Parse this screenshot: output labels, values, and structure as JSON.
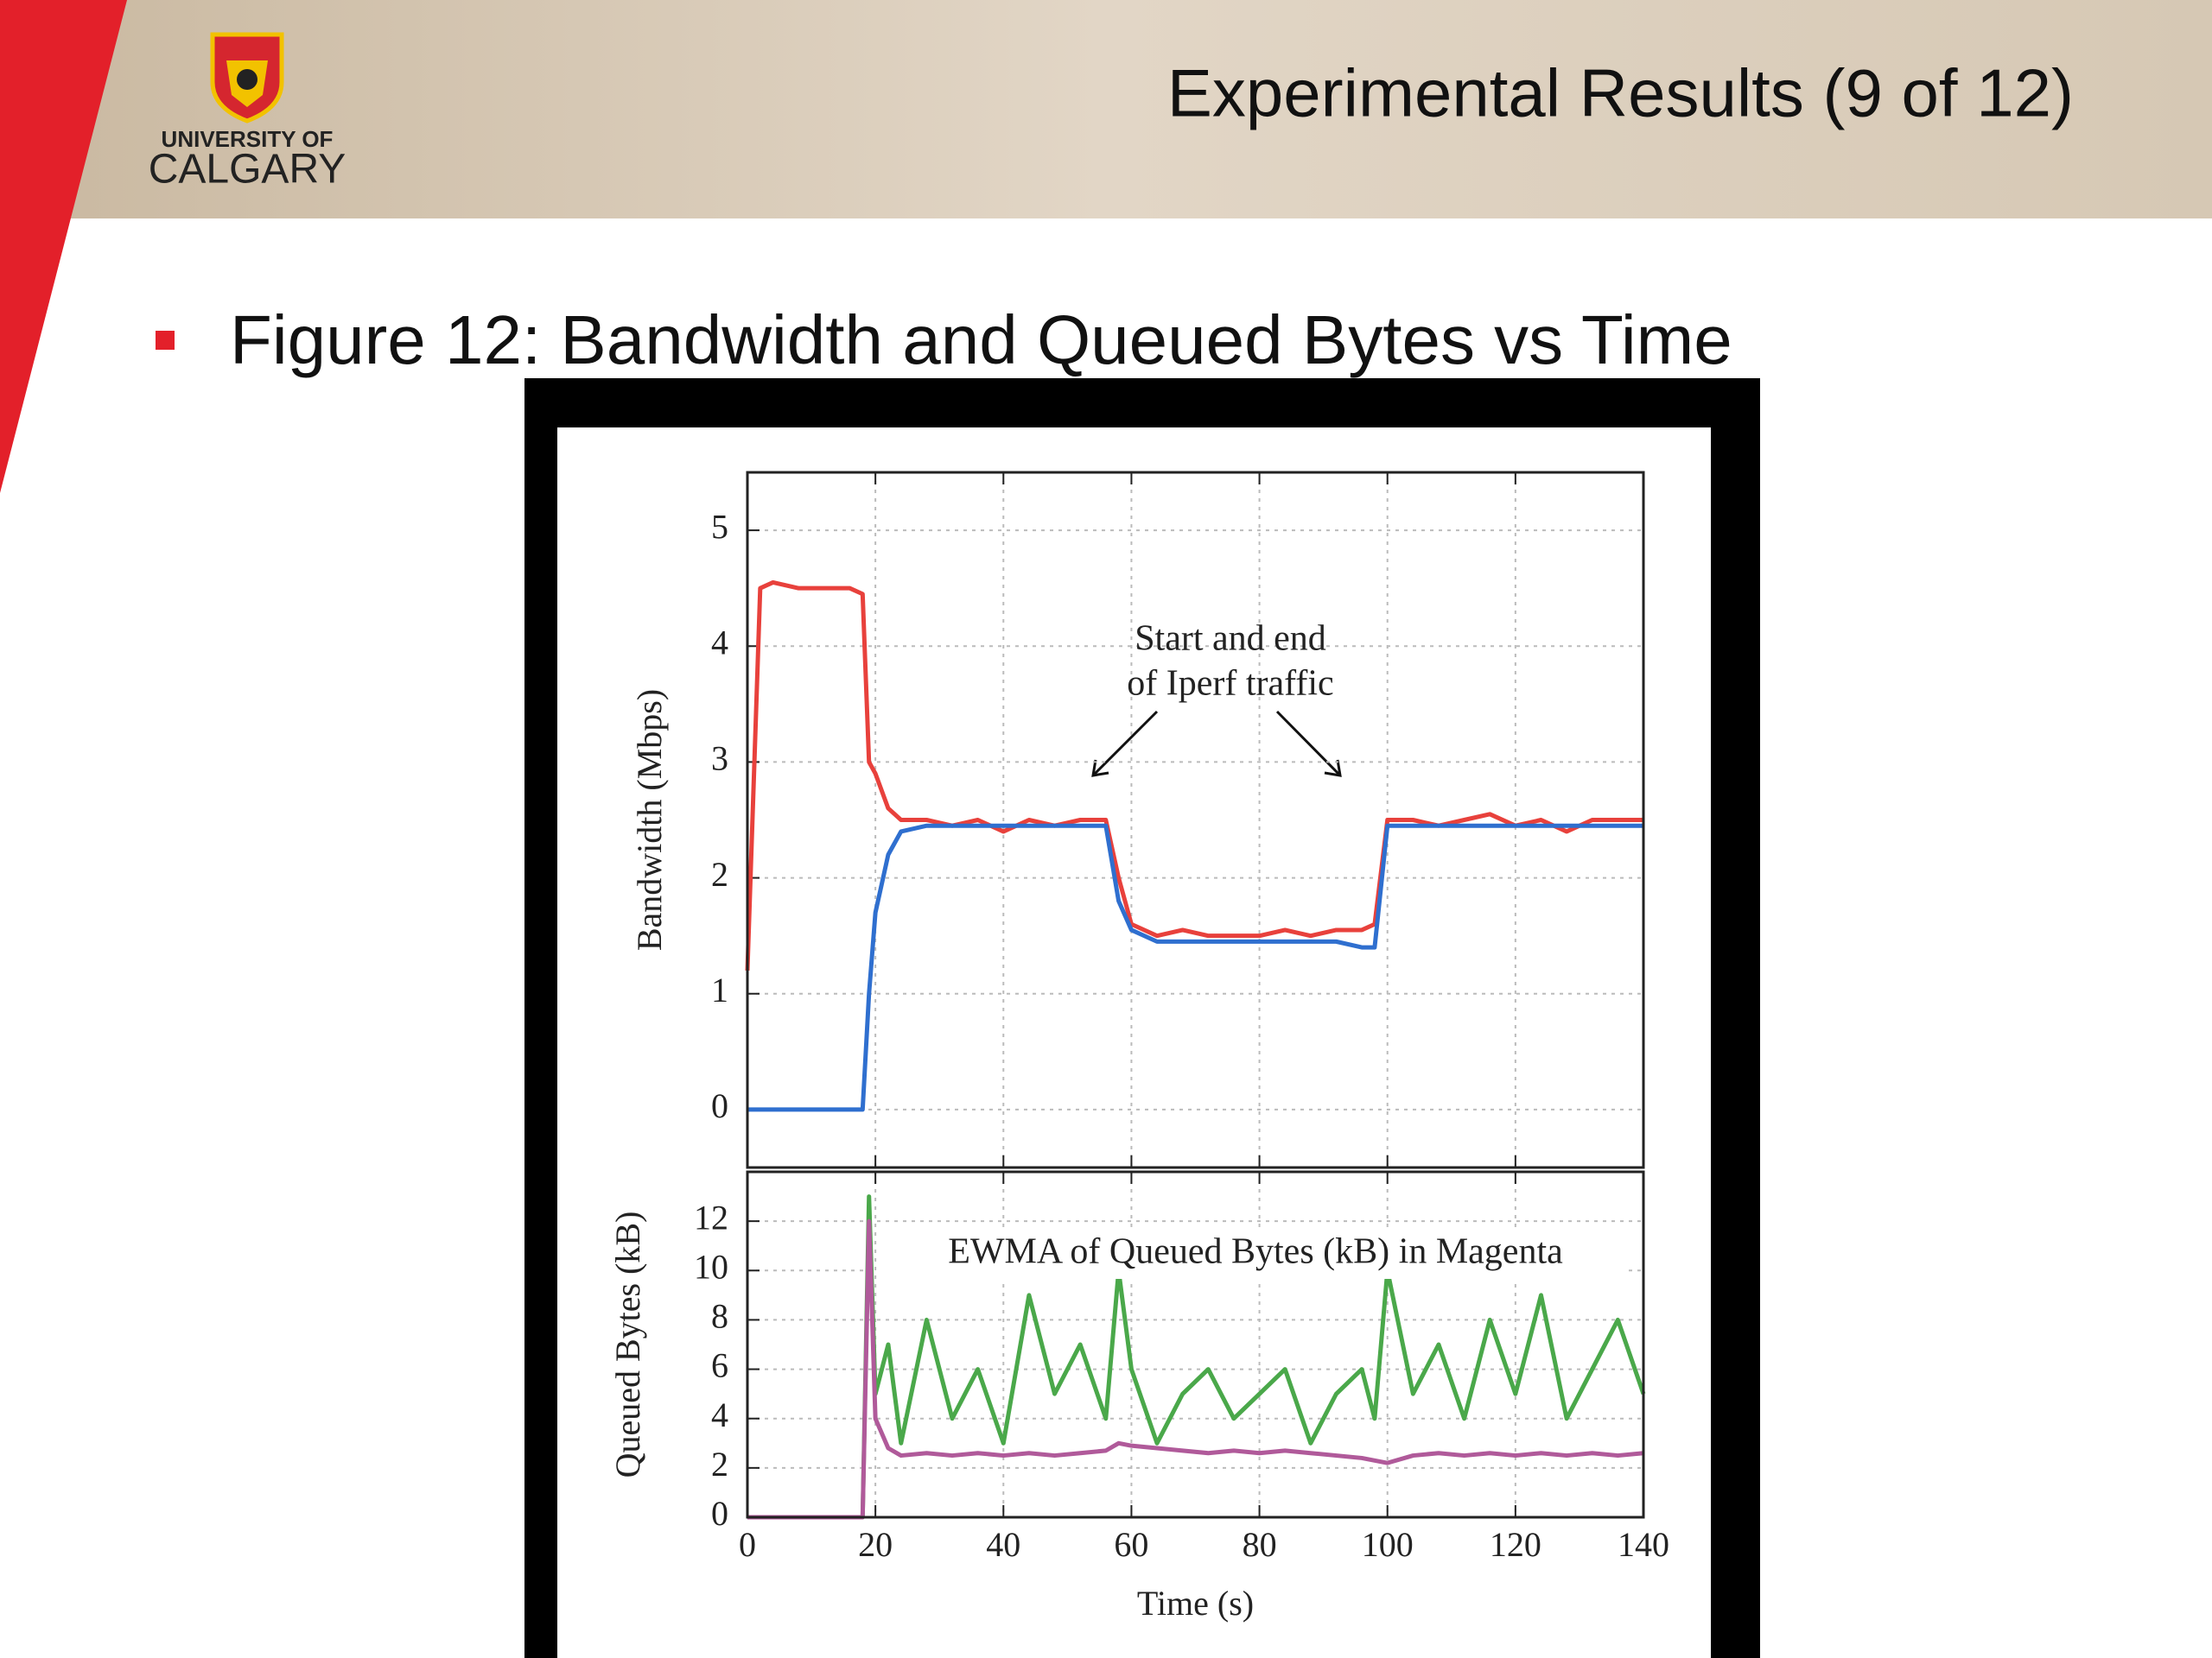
{
  "header": {
    "title": "Experimental Results (9 of 12)",
    "logo": [
      "UNIVERSITY OF",
      "CALGARY"
    ]
  },
  "bullet": "Figure 12: Bandwidth and Queued Bytes vs Time",
  "chart_data": [
    {
      "type": "line",
      "ylabel": "Bandwidth (Mbps)",
      "annotation": [
        "Start and end",
        "of Iperf traffic"
      ],
      "x": [
        0,
        2,
        4,
        8,
        12,
        16,
        18,
        19,
        20,
        22,
        24,
        28,
        32,
        36,
        40,
        44,
        48,
        52,
        56,
        58,
        60,
        64,
        68,
        72,
        76,
        80,
        84,
        88,
        92,
        96,
        98,
        100,
        104,
        108,
        112,
        116,
        120,
        124,
        128,
        132,
        136,
        140
      ],
      "series": [
        {
          "name": "Red flow",
          "color": "#e8413c",
          "values": [
            1.2,
            4.5,
            4.55,
            4.5,
            4.5,
            4.5,
            4.45,
            3.0,
            2.9,
            2.6,
            2.5,
            2.5,
            2.45,
            2.5,
            2.4,
            2.5,
            2.45,
            2.5,
            2.5,
            2.0,
            1.6,
            1.5,
            1.55,
            1.5,
            1.5,
            1.5,
            1.55,
            1.5,
            1.55,
            1.55,
            1.6,
            2.5,
            2.5,
            2.45,
            2.5,
            2.55,
            2.45,
            2.5,
            2.4,
            2.5,
            2.5,
            2.5
          ]
        },
        {
          "name": "Blue flow",
          "color": "#2f6fcf",
          "values": [
            0,
            0,
            0,
            0,
            0,
            0,
            0,
            1.0,
            1.7,
            2.2,
            2.4,
            2.45,
            2.45,
            2.45,
            2.45,
            2.45,
            2.45,
            2.45,
            2.45,
            1.8,
            1.55,
            1.45,
            1.45,
            1.45,
            1.45,
            1.45,
            1.45,
            1.45,
            1.45,
            1.4,
            1.4,
            2.45,
            2.45,
            2.45,
            2.45,
            2.45,
            2.45,
            2.45,
            2.45,
            2.45,
            2.45,
            2.45
          ]
        }
      ],
      "xlim": [
        0,
        140
      ],
      "xticks": [
        0,
        20,
        40,
        60,
        80,
        100,
        120,
        140
      ],
      "show_xtick_labels": false,
      "ylim": [
        -0.5,
        5.5
      ],
      "yticks": [
        0,
        1,
        2,
        3,
        4,
        5
      ],
      "grid": true
    },
    {
      "type": "line",
      "annotation": "EWMA of Queued Bytes (kB) in Magenta",
      "xlabel": "Time (s)",
      "ylabel": "Queued Bytes (kB)",
      "x": [
        0,
        2,
        4,
        8,
        12,
        16,
        18,
        19,
        20,
        22,
        24,
        28,
        32,
        36,
        40,
        44,
        48,
        52,
        56,
        58,
        60,
        64,
        68,
        72,
        76,
        80,
        84,
        88,
        92,
        96,
        98,
        100,
        104,
        108,
        112,
        116,
        120,
        124,
        128,
        132,
        136,
        140
      ],
      "series": [
        {
          "name": "Queued bytes",
          "color": "#4aa84a",
          "values": [
            0,
            0,
            0,
            0,
            0,
            0,
            0,
            13,
            5,
            7,
            3,
            8,
            4,
            6,
            3,
            9,
            5,
            7,
            4,
            10,
            6,
            3,
            5,
            6,
            4,
            5,
            6,
            3,
            5,
            6,
            4,
            10,
            5,
            7,
            4,
            8,
            5,
            9,
            4,
            6,
            8,
            5
          ]
        },
        {
          "name": "EWMA",
          "color": "#b05a9a",
          "values": [
            0,
            0,
            0,
            0,
            0,
            0,
            0,
            12,
            4,
            2.8,
            2.5,
            2.6,
            2.5,
            2.6,
            2.5,
            2.6,
            2.5,
            2.6,
            2.7,
            3.0,
            2.9,
            2.8,
            2.7,
            2.6,
            2.7,
            2.6,
            2.7,
            2.6,
            2.5,
            2.4,
            2.3,
            2.2,
            2.5,
            2.6,
            2.5,
            2.6,
            2.5,
            2.6,
            2.5,
            2.6,
            2.5,
            2.6
          ]
        }
      ],
      "xlim": [
        0,
        140
      ],
      "xticks": [
        0,
        20,
        40,
        60,
        80,
        100,
        120,
        140
      ],
      "show_xtick_labels": true,
      "ylim": [
        0,
        14
      ],
      "yticks": [
        0,
        2,
        4,
        6,
        8,
        10,
        12
      ],
      "grid": true
    }
  ]
}
